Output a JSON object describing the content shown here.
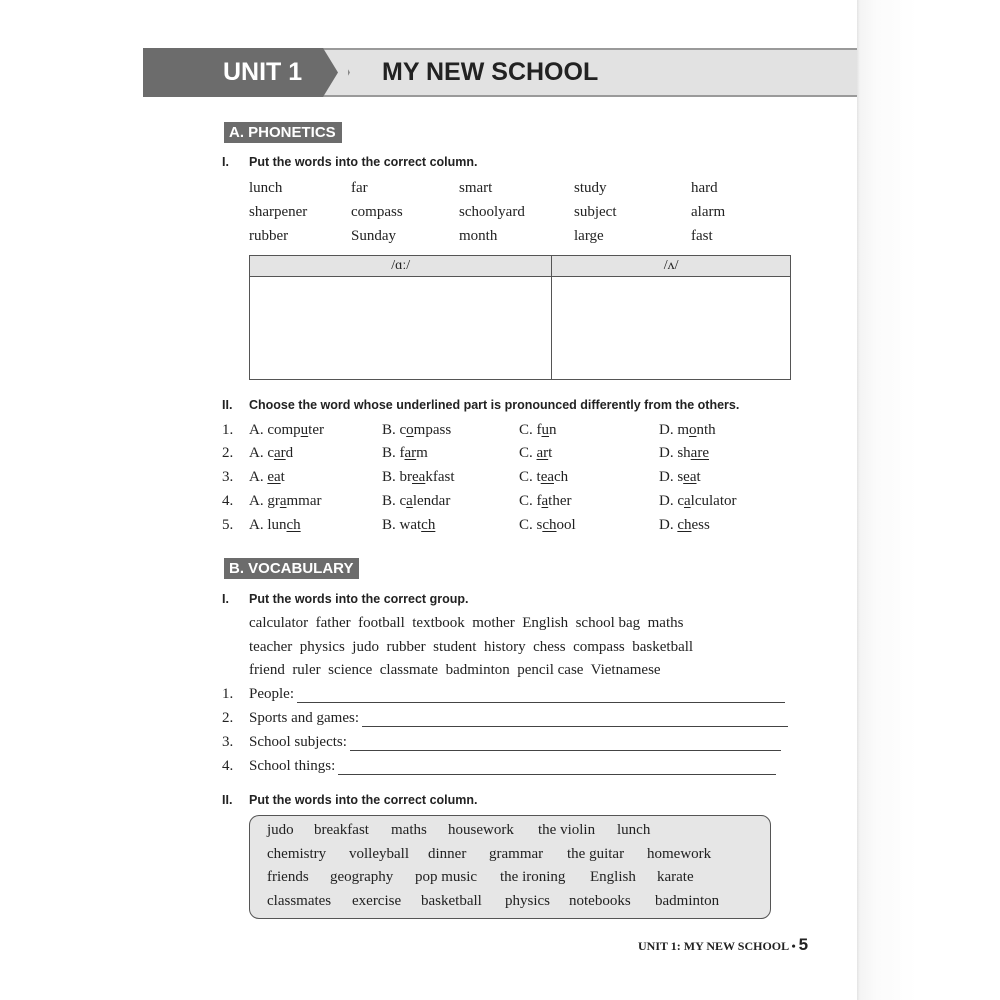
{
  "header": {
    "unit": "UNIT 1",
    "title": "MY NEW SCHOOL"
  },
  "phonetics": {
    "label": "A. PHONETICS",
    "ex1": {
      "num": "I.",
      "text": "Put the words into the correct column.",
      "words": [
        [
          "lunch",
          "far",
          "smart",
          "study",
          "hard"
        ],
        [
          "sharpener",
          "compass",
          "schoolyard",
          "subject",
          "alarm"
        ],
        [
          "rubber",
          "Sunday",
          "month",
          "large",
          "fast"
        ]
      ],
      "columns": [
        "/ɑː/",
        "/ʌ/"
      ]
    },
    "ex2": {
      "num": "II.",
      "text": "Choose the word whose underlined part is pronounced differently from the others.",
      "items": [
        {
          "num": "1.",
          "opts": [
            [
              "A. comp",
              "u",
              "ter"
            ],
            [
              "B. c",
              "o",
              "mpass"
            ],
            [
              "C. f",
              "u",
              "n"
            ],
            [
              "D. m",
              "o",
              "nth"
            ]
          ]
        },
        {
          "num": "2.",
          "opts": [
            [
              "A. c",
              "ar",
              "d"
            ],
            [
              "B. f",
              "ar",
              "m"
            ],
            [
              "C. ",
              "ar",
              "t"
            ],
            [
              "D. sh",
              "are",
              ""
            ]
          ]
        },
        {
          "num": "3.",
          "opts": [
            [
              "A. ",
              "ea",
              "t"
            ],
            [
              "B. br",
              "ea",
              "kfast"
            ],
            [
              "C. t",
              "ea",
              "ch"
            ],
            [
              "D. s",
              "ea",
              "t"
            ]
          ]
        },
        {
          "num": "4.",
          "opts": [
            [
              "A. gr",
              "a",
              "mmar"
            ],
            [
              "B. c",
              "a",
              "lendar"
            ],
            [
              "C. f",
              "a",
              "ther"
            ],
            [
              "D. c",
              "a",
              "lculator"
            ]
          ]
        },
        {
          "num": "5.",
          "opts": [
            [
              "A. lun",
              "ch",
              ""
            ],
            [
              "B. wat",
              "ch",
              ""
            ],
            [
              "C. s",
              "ch",
              "ool"
            ],
            [
              "D. ",
              "ch",
              "ess"
            ]
          ]
        }
      ]
    }
  },
  "vocabulary": {
    "label": "B. VOCABULARY",
    "ex1": {
      "num": "I.",
      "text": "Put the words into the correct group.",
      "lines": [
        "calculator  father  football  textbook  mother  English  school bag  maths",
        "teacher  physics  judo  rubber  student  history  chess  compass  basketball",
        "friend  ruler  science  classmate  badminton  pencil case  Vietnamese"
      ],
      "groups": [
        {
          "num": "1.",
          "label": "People:"
        },
        {
          "num": "2.",
          "label": "Sports and games:"
        },
        {
          "num": "3.",
          "label": "School subjects:"
        },
        {
          "num": "4.",
          "label": "School things:"
        }
      ]
    },
    "ex2": {
      "num": "II.",
      "text": "Put the words into the correct column.",
      "box": [
        [
          "judo",
          "breakfast",
          "maths",
          "housework",
          "the violin",
          "lunch"
        ],
        [
          "chemistry",
          "volleyball",
          "dinner",
          "grammar",
          "the guitar",
          "homework"
        ],
        [
          "friends",
          "geography",
          "pop music",
          "the ironing",
          "English",
          "karate"
        ],
        [
          "classmates",
          "exercise",
          "basketball",
          "physics",
          "notebooks",
          "badminton"
        ]
      ]
    }
  },
  "footer": {
    "text": "UNIT 1: MY NEW SCHOOL •",
    "page": "5"
  }
}
